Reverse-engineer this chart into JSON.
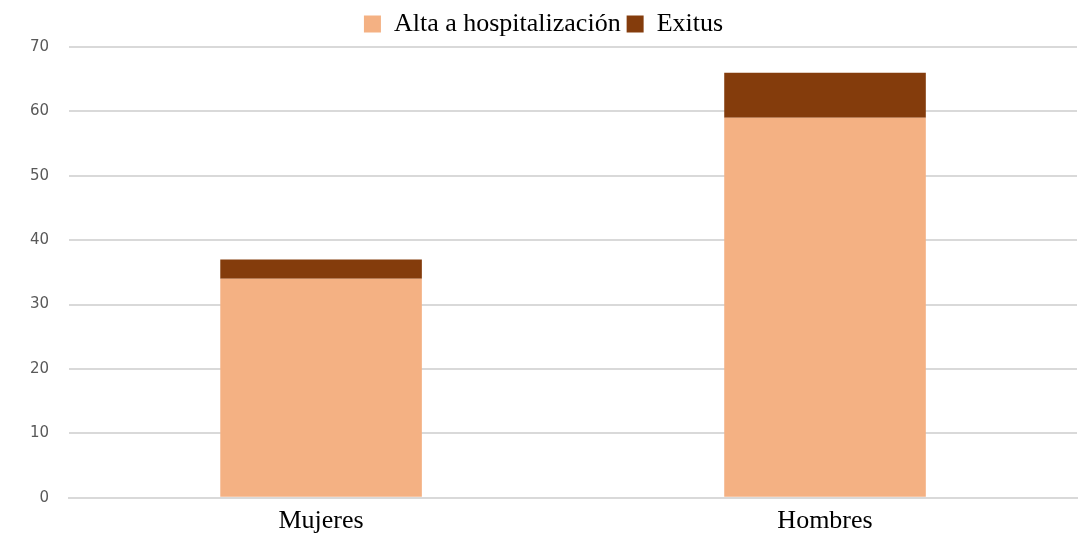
{
  "chart_data": {
    "type": "bar",
    "stacked": true,
    "categories": [
      "Mujeres",
      "Hombres"
    ],
    "series": [
      {
        "name": "Alta a hospitalización",
        "color": "#f4b183",
        "values": [
          34,
          59
        ]
      },
      {
        "name": "Exitus",
        "color": "#843c0c",
        "values": [
          3,
          7
        ]
      }
    ],
    "ylim": [
      0,
      70
    ],
    "yticks": [
      0,
      10,
      20,
      30,
      40,
      50,
      60,
      70
    ],
    "grid": "y",
    "legend": "top"
  }
}
